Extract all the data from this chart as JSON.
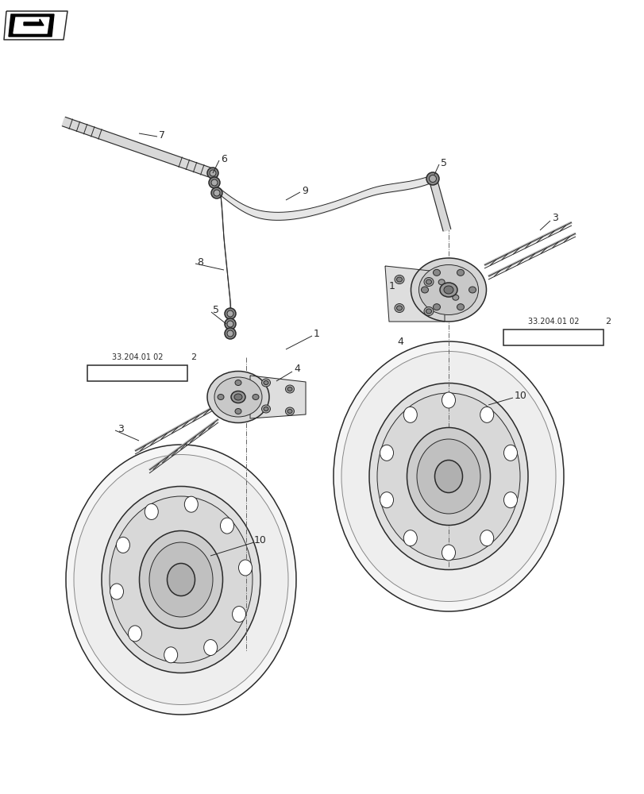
{
  "background_color": "#ffffff",
  "figure_width": 8.12,
  "figure_height": 10.0,
  "dpi": 100,
  "line_color": "#2a2a2a",
  "thin_line": 0.7,
  "med_line": 1.1,
  "thick_line": 2.0
}
